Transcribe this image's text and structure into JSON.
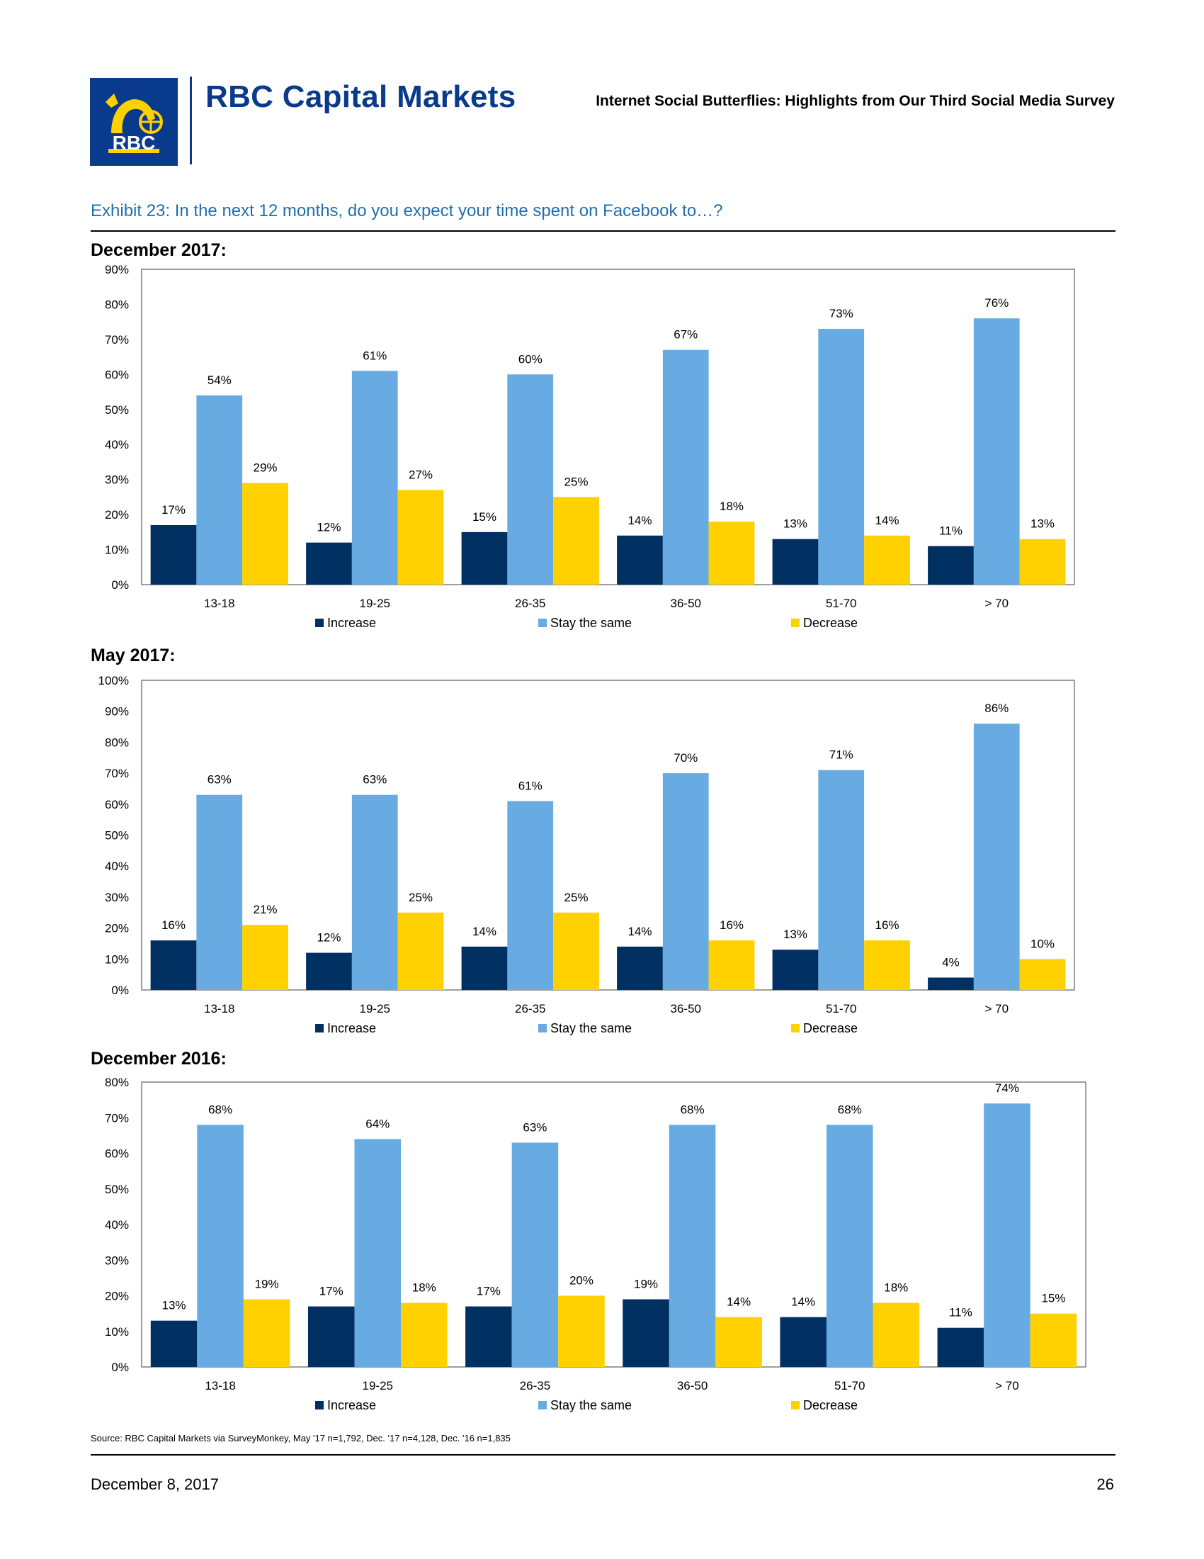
{
  "header": {
    "logo_text": "RBC",
    "brand_name": "RBC Capital Markets",
    "report_title": "Internet Social Butterflies: Highlights from Our Third Social Media Survey"
  },
  "exhibit": {
    "title": "Exhibit 23: In the next 12 months, do you expect your time spent on Facebook to…?"
  },
  "colors": {
    "increase": "#002f62",
    "stay": "#67abe2",
    "decrease": "#ffd100",
    "brand": "#0a3a8c",
    "exhibit": "#1f6fb0"
  },
  "chart_data": [
    {
      "type": "bar",
      "heading": "December 2017:",
      "categories": [
        "13-18",
        "19-25",
        "26-35",
        "36-50",
        "51-70",
        "> 70"
      ],
      "ylim": [
        0,
        90
      ],
      "yticks": [
        "0%",
        "10%",
        "20%",
        "30%",
        "40%",
        "50%",
        "60%",
        "70%",
        "80%",
        "90%"
      ],
      "legend_position": "bottom",
      "series": [
        {
          "name": "Increase",
          "values": [
            17,
            12,
            15,
            14,
            13,
            11
          ],
          "labels": [
            "17%",
            "12%",
            "15%",
            "14%",
            "13%",
            "11%"
          ]
        },
        {
          "name": "Stay the same",
          "values": [
            54,
            61,
            60,
            67,
            73,
            76
          ],
          "labels": [
            "54%",
            "61%",
            "60%",
            "67%",
            "73%",
            "76%"
          ]
        },
        {
          "name": "Decrease",
          "values": [
            29,
            27,
            25,
            18,
            14,
            13
          ],
          "labels": [
            "29%",
            "27%",
            "25%",
            "18%",
            "14%",
            "13%"
          ]
        }
      ]
    },
    {
      "type": "bar",
      "heading": "May 2017:",
      "categories": [
        "13-18",
        "19-25",
        "26-35",
        "36-50",
        "51-70",
        "> 70"
      ],
      "ylim": [
        0,
        100
      ],
      "yticks": [
        "0%",
        "10%",
        "20%",
        "30%",
        "40%",
        "50%",
        "60%",
        "70%",
        "80%",
        "90%",
        "100%"
      ],
      "legend_position": "bottom",
      "series": [
        {
          "name": "Increase",
          "values": [
            16,
            12,
            14,
            14,
            13,
            4
          ],
          "labels": [
            "16%",
            "12%",
            "14%",
            "14%",
            "13%",
            "4%"
          ]
        },
        {
          "name": "Stay the same",
          "values": [
            63,
            63,
            61,
            70,
            71,
            86
          ],
          "labels": [
            "63%",
            "63%",
            "61%",
            "70%",
            "71%",
            "86%"
          ]
        },
        {
          "name": "Decrease",
          "values": [
            21,
            25,
            25,
            16,
            16,
            10
          ],
          "labels": [
            "21%",
            "25%",
            "25%",
            "16%",
            "16%",
            "10%"
          ]
        }
      ]
    },
    {
      "type": "bar",
      "heading": "December 2016:",
      "categories": [
        "13-18",
        "19-25",
        "26-35",
        "36-50",
        "51-70",
        "> 70"
      ],
      "ylim": [
        0,
        80
      ],
      "yticks": [
        "0%",
        "10%",
        "20%",
        "30%",
        "40%",
        "50%",
        "60%",
        "70%",
        "80%"
      ],
      "legend_position": "bottom",
      "series": [
        {
          "name": "Increase",
          "values": [
            13,
            17,
            17,
            19,
            14,
            11
          ],
          "labels": [
            "13%",
            "17%",
            "17%",
            "19%",
            "14%",
            "11%"
          ]
        },
        {
          "name": "Stay the same",
          "values": [
            68,
            64,
            63,
            68,
            68,
            74
          ],
          "labels": [
            "68%",
            "64%",
            "63%",
            "68%",
            "68%",
            "74%"
          ]
        },
        {
          "name": "Decrease",
          "values": [
            19,
            18,
            20,
            14,
            18,
            15
          ],
          "labels": [
            "19%",
            "18%",
            "20%",
            "14%",
            "18%",
            "15%"
          ]
        }
      ]
    }
  ],
  "source": "Source: RBC Capital Markets via SurveyMonkey, May '17 n=1,792, Dec. '17 n=4,128, Dec. '16 n=1,835",
  "footer": {
    "date": "December 8, 2017",
    "page": "26"
  }
}
